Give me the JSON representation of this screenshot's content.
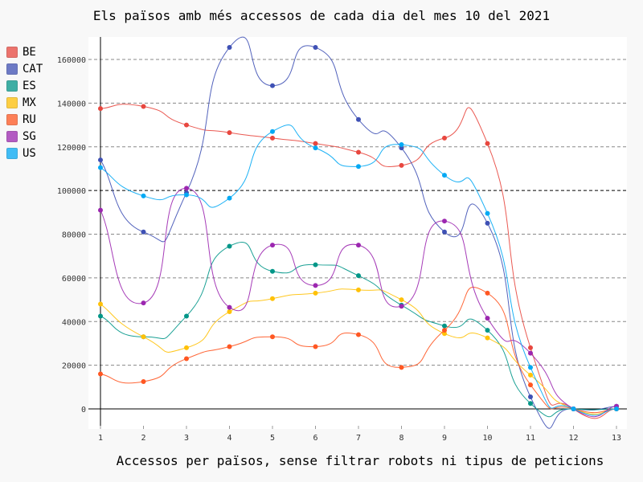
{
  "chart_data": {
    "type": "line",
    "title": "Els països amb més accessos de cada dia del mes 10 del 2021",
    "xlabel": "Accessos per països, sense filtrar robots ni tipus de peticions",
    "ylabel": "",
    "x": [
      1,
      2,
      3,
      4,
      5,
      6,
      7,
      8,
      9,
      10,
      11,
      12,
      13
    ],
    "ylim": [
      0,
      170000
    ],
    "yticks": [
      0,
      20000,
      40000,
      60000,
      80000,
      100000,
      120000,
      140000,
      160000
    ],
    "grid": true,
    "legend_position": "left",
    "series": [
      {
        "name": "BE",
        "color": "#e8473f",
        "values": [
          137500,
          138500,
          130000,
          126500,
          124000,
          121500,
          117500,
          111500,
          124000,
          121500,
          28000,
          0,
          0
        ]
      },
      {
        "name": "CAT",
        "color": "#3f51b5",
        "values": [
          114000,
          81000,
          99000,
          165500,
          148000,
          165500,
          132500,
          119500,
          81000,
          85000,
          5500,
          0,
          1200
        ]
      },
      {
        "name": "ES",
        "color": "#009688",
        "values": [
          42500,
          33000,
          42500,
          74500,
          63000,
          66000,
          61000,
          47500,
          38000,
          36000,
          2500,
          0,
          0
        ]
      },
      {
        "name": "MX",
        "color": "#ffc107",
        "values": [
          48000,
          33000,
          28000,
          44500,
          50500,
          53000,
          54500,
          50000,
          34500,
          32500,
          15500,
          0,
          0
        ]
      },
      {
        "name": "RU",
        "color": "#ff5722",
        "values": [
          16000,
          12500,
          23000,
          28500,
          33000,
          28500,
          34000,
          19000,
          36000,
          53000,
          11000,
          0,
          0
        ]
      },
      {
        "name": "SG",
        "color": "#9c27b0",
        "values": [
          91000,
          48500,
          101000,
          46500,
          75000,
          56500,
          75000,
          47000,
          86000,
          41500,
          25500,
          0,
          1200
        ]
      },
      {
        "name": "US",
        "color": "#03a9f4",
        "values": [
          110500,
          97500,
          98000,
          96500,
          127000,
          119500,
          111000,
          121000,
          107000,
          89500,
          19000,
          0,
          0
        ]
      }
    ]
  }
}
